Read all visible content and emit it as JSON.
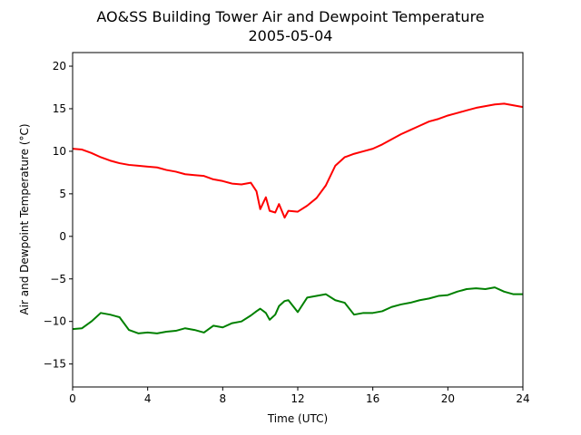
{
  "chart_data": {
    "type": "line",
    "title": [
      "AO&SS Building Tower Air and Dewpoint Temperature",
      "2005-05-04"
    ],
    "x_label": "Time (UTC)",
    "y_label": "Air and Dewpoint Temperature (°C)",
    "x": [
      0,
      0.5,
      1,
      1.5,
      2,
      2.5,
      3,
      3.5,
      4,
      4.5,
      5,
      5.5,
      6,
      6.5,
      7,
      7.5,
      8,
      8.5,
      9,
      9.5,
      9.8,
      10,
      10.3,
      10.5,
      10.8,
      11,
      11.3,
      11.5,
      12,
      12.5,
      13,
      13.5,
      14,
      14.5,
      15,
      15.5,
      16,
      16.5,
      17,
      17.5,
      18,
      18.5,
      19,
      19.5,
      20,
      20.5,
      21,
      21.5,
      22,
      22.5,
      23,
      23.5,
      24
    ],
    "series": [
      {
        "color": "#ff0000",
        "values": [
          10.3,
          10.2,
          9.8,
          9.3,
          8.9,
          8.6,
          8.4,
          8.3,
          8.2,
          8.1,
          7.8,
          7.6,
          7.3,
          7.2,
          7.1,
          6.7,
          6.5,
          6.2,
          6.1,
          6.3,
          5.3,
          3.2,
          4.6,
          3.0,
          2.8,
          3.8,
          2.2,
          3.0,
          2.9,
          3.6,
          4.5,
          6.0,
          8.3,
          9.3,
          9.7,
          10.0,
          10.3,
          10.8,
          11.4,
          12.0,
          12.5,
          13.0,
          13.5,
          13.8,
          14.2,
          14.5,
          14.8,
          15.1,
          15.3,
          15.5,
          15.6,
          15.4,
          15.2
        ]
      },
      {
        "color": "#008000",
        "values": [
          -10.9,
          -10.8,
          -10.0,
          -9.0,
          -9.2,
          -9.5,
          -11.0,
          -11.4,
          -11.3,
          -11.4,
          -11.2,
          -11.1,
          -10.8,
          -11.0,
          -11.3,
          -10.5,
          -10.7,
          -10.2,
          -10.0,
          -9.3,
          -8.8,
          -8.5,
          -9.0,
          -9.8,
          -9.2,
          -8.2,
          -7.6,
          -7.5,
          -8.9,
          -7.2,
          -7.0,
          -6.8,
          -7.5,
          -7.8,
          -9.2,
          -9.0,
          -9.0,
          -8.8,
          -8.3,
          -8.0,
          -7.8,
          -7.5,
          -7.3,
          -7.0,
          -6.9,
          -6.5,
          -6.2,
          -6.1,
          -6.2,
          -6.0,
          -6.5,
          -6.8,
          -6.8
        ]
      }
    ],
    "xlim": [
      0,
      24
    ],
    "xticks": [
      0,
      4,
      8,
      12,
      16,
      20,
      24
    ],
    "ylim": [
      -17.7,
      21.6
    ],
    "yticks": [
      {
        "value": -15,
        "label": "−15"
      },
      {
        "value": -10,
        "label": "−10"
      },
      {
        "value": -5,
        "label": "−5"
      },
      0,
      5,
      10,
      15,
      20
    ],
    "grid": false
  }
}
